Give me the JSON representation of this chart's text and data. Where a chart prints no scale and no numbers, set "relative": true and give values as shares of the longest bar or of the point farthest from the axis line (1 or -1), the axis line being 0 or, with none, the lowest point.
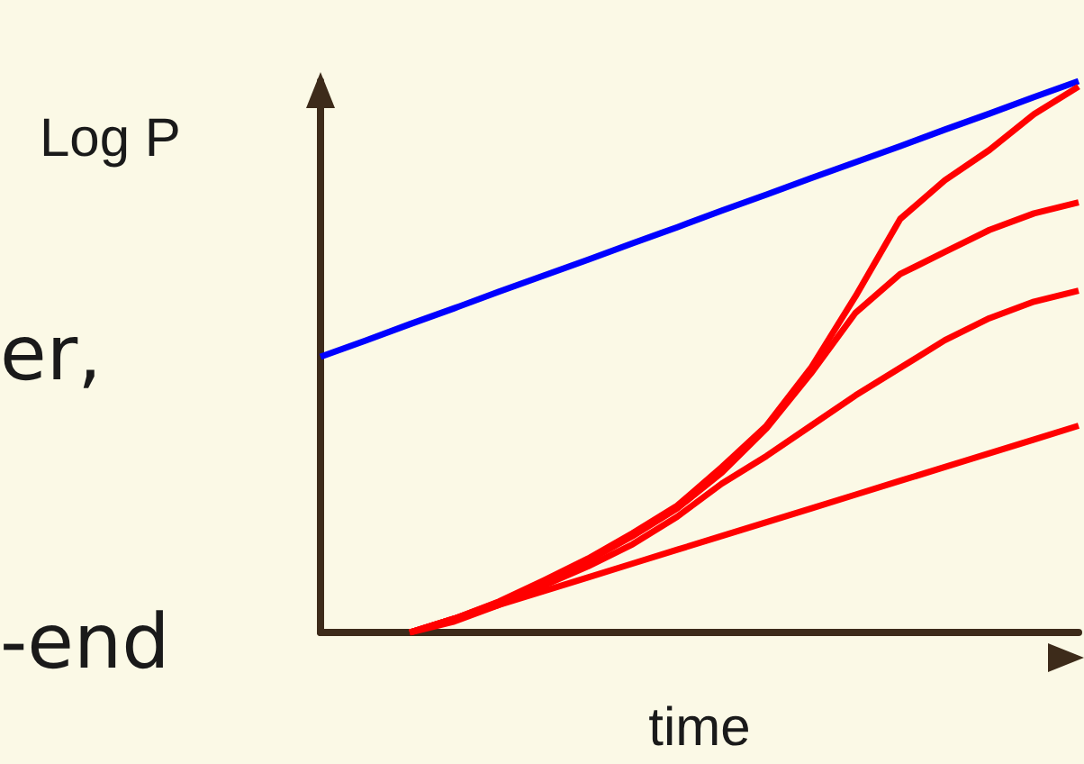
{
  "chart_data": {
    "type": "line",
    "relative": true,
    "xlabel": "time",
    "ylabel": "Log P",
    "annotations": [
      "er,",
      "-end"
    ],
    "categories": [
      null,
      null,
      null,
      null,
      null,
      null,
      null,
      null,
      null,
      null,
      null,
      null,
      null,
      null,
      null,
      null,
      null,
      null
    ],
    "series": [
      {
        "color": "#0000ff",
        "values": [
          0.5,
          0.529,
          0.559,
          0.588,
          0.618,
          0.647,
          0.676,
          0.706,
          0.735,
          0.765,
          0.794,
          0.824,
          0.853,
          0.882,
          0.912,
          0.941,
          0.971,
          1.0
        ]
      },
      {
        "color": "#ff0000",
        "values": [
          null,
          null,
          0,
          0.025,
          0.056,
          0.094,
          0.134,
          0.18,
          0.23,
          0.3,
          0.375,
          0.48,
          0.61,
          0.75,
          0.82,
          0.875,
          0.94,
          0.99
        ]
      },
      {
        "color": "#ff0000",
        "values": [
          null,
          null,
          0,
          0.025,
          0.055,
          0.092,
          0.13,
          0.175,
          0.225,
          0.29,
          0.37,
          0.47,
          0.58,
          0.65,
          0.69,
          0.73,
          0.76,
          0.78
        ]
      },
      {
        "color": "#ff0000",
        "values": [
          null,
          null,
          0,
          0.02,
          0.05,
          0.085,
          0.12,
          0.16,
          0.21,
          0.27,
          0.32,
          0.375,
          0.43,
          0.48,
          0.53,
          0.57,
          0.6,
          0.62
        ]
      },
      {
        "color": "#ff0000",
        "values": [
          null,
          null,
          0,
          0.025,
          0.05,
          0.075,
          0.1,
          0.125,
          0.15,
          0.175,
          0.2,
          0.225,
          0.25,
          0.275,
          0.3,
          0.325,
          0.35,
          0.375
        ]
      }
    ],
    "grid": false,
    "marker": "none"
  }
}
